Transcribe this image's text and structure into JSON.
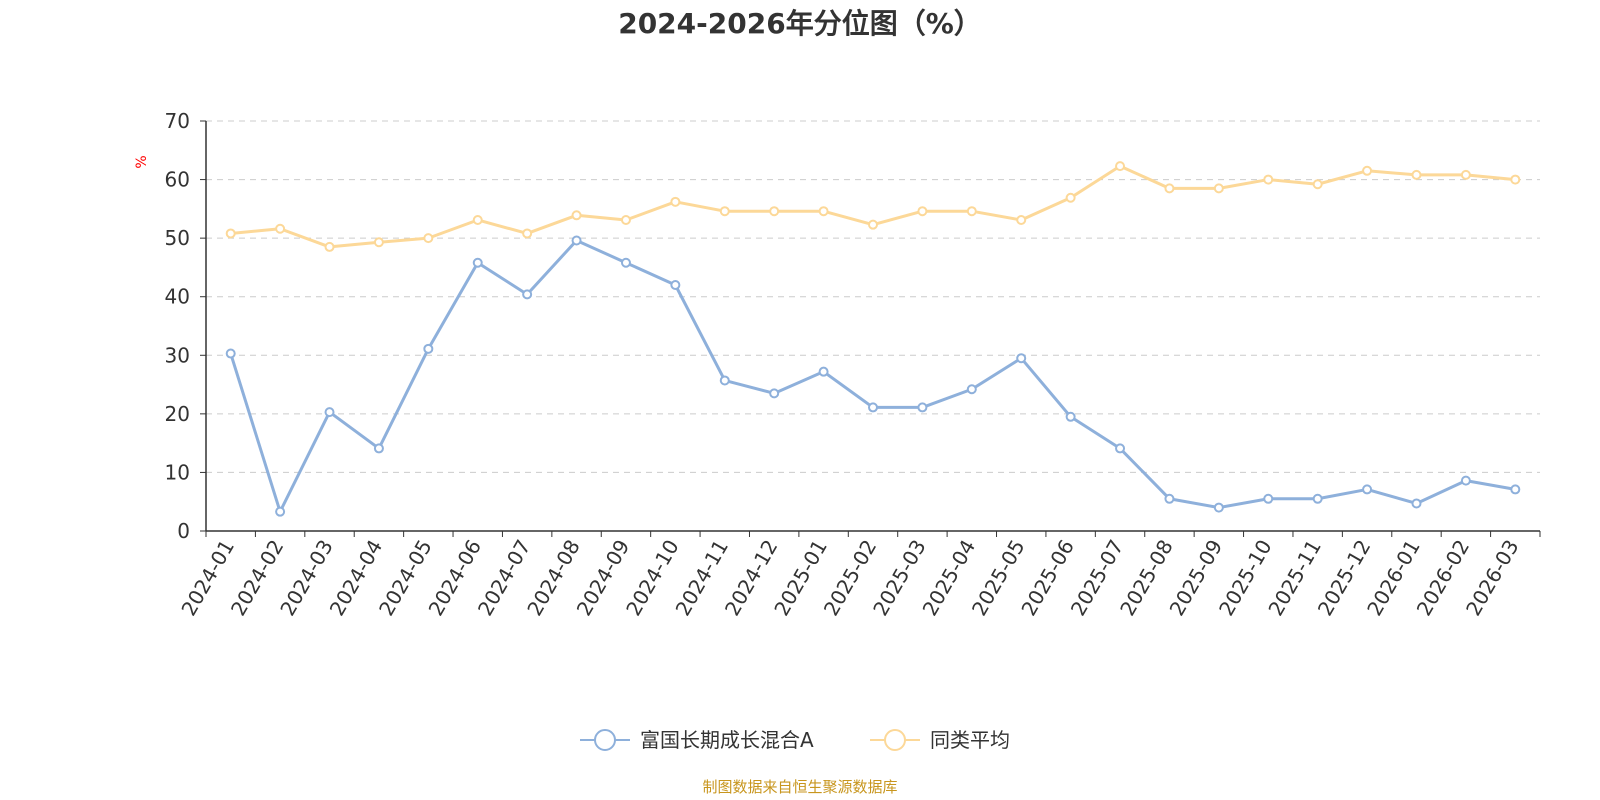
{
  "chart_data": {
    "type": "line",
    "title": "2024-2026年分位图（%）",
    "ylabel": "%",
    "xlabel": "",
    "ylim": [
      0,
      70
    ],
    "yticks": [
      0,
      10,
      20,
      30,
      40,
      50,
      60,
      70
    ],
    "grid": "horizontal dashed",
    "categories": [
      "2024-01",
      "2024-02",
      "2024-03",
      "2024-04",
      "2024-05",
      "2024-06",
      "2024-07",
      "2024-08",
      "2024-09",
      "2024-10",
      "2024-11",
      "2024-12",
      "2025-01",
      "2025-02",
      "2025-03",
      "2025-04",
      "2025-05",
      "2025-06",
      "2025-07",
      "2025-08",
      "2025-09",
      "2025-10",
      "2025-11",
      "2025-12",
      "2026-01",
      "2026-02",
      "2026-03"
    ],
    "series": [
      {
        "name": "富国长期成长混合A",
        "color": "#8eb0db",
        "values": [
          30.3,
          3.3,
          20.3,
          14.1,
          31.1,
          45.8,
          40.4,
          49.6,
          45.8,
          42.0,
          25.7,
          23.5,
          27.2,
          21.1,
          21.1,
          24.2,
          29.5,
          19.5,
          14.1,
          5.5,
          4.0,
          5.5,
          5.5,
          7.1,
          4.7,
          8.6,
          7.1
        ]
      },
      {
        "name": "同类平均",
        "color": "#fcd898",
        "values": [
          50.8,
          51.6,
          48.5,
          49.3,
          50.0,
          53.1,
          50.8,
          53.9,
          53.1,
          56.2,
          54.6,
          54.6,
          54.6,
          52.3,
          54.6,
          54.6,
          53.1,
          56.9,
          62.3,
          58.5,
          58.5,
          60.0,
          59.2,
          61.5,
          60.8,
          60.8,
          60.0
        ]
      }
    ],
    "legend_position": "bottom-center"
  },
  "footer": {
    "source": "制图数据来自恒生聚源数据库",
    "source_color": "#c8961e"
  },
  "ylabel_color": "#ff0000"
}
